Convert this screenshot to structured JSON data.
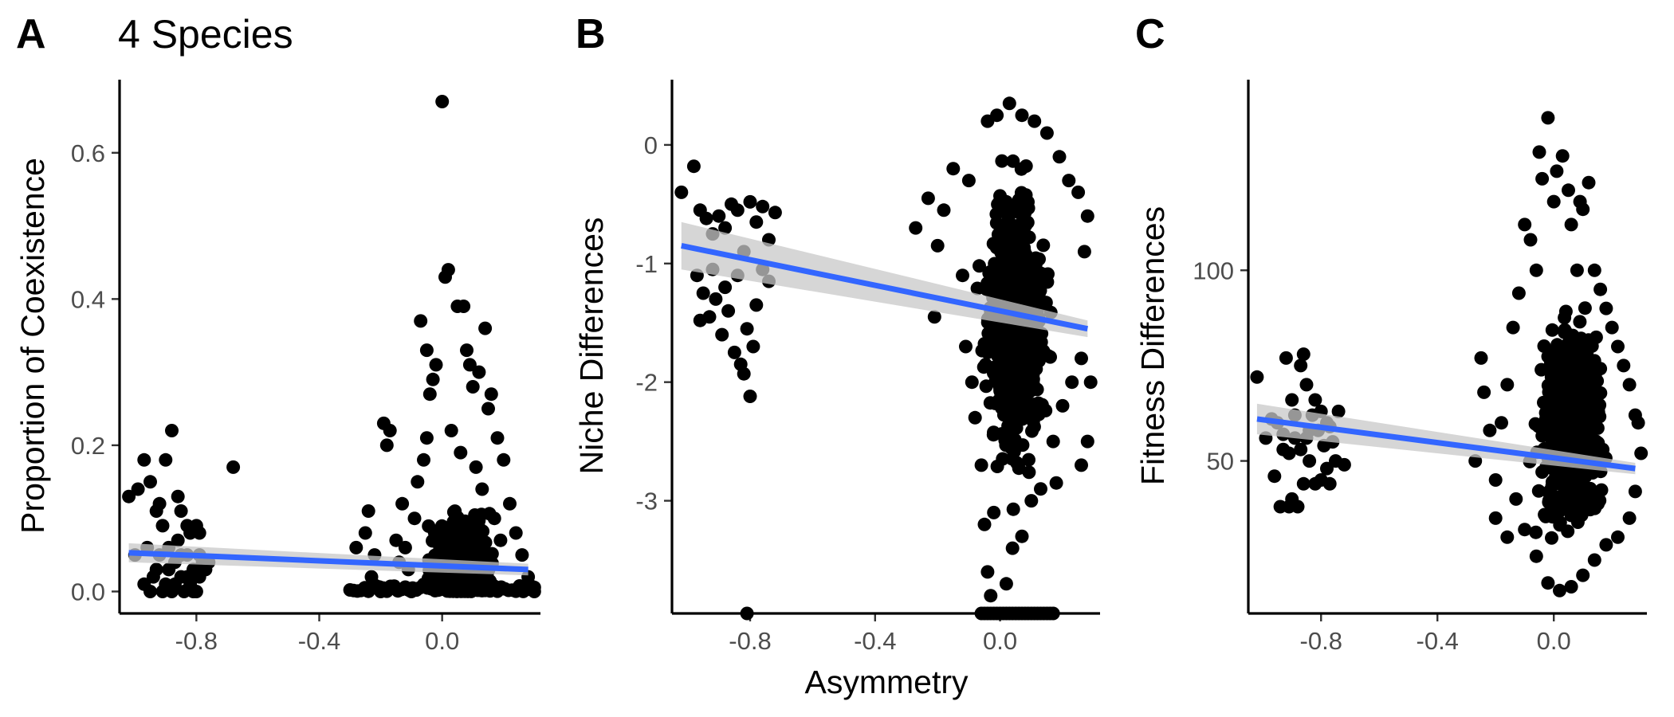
{
  "chart_data": [
    {
      "type": "scatter",
      "panel_label": "A",
      "title": "4 Species",
      "xlabel": "",
      "ylabel": "Proportion of Coexistence",
      "xlim": [
        -1.05,
        0.32
      ],
      "ylim": [
        -0.03,
        0.7
      ],
      "x_ticks": [
        -0.8,
        -0.4,
        0.0
      ],
      "x_tick_labels": [
        "-0.8",
        "-0.4",
        "0.0"
      ],
      "y_ticks": [
        0.0,
        0.2,
        0.4,
        0.6
      ],
      "y_tick_labels": [
        "0.0",
        "0.2",
        "0.4",
        "0.6"
      ],
      "grid": false,
      "points": [
        [
          -1.02,
          0.13
        ],
        [
          -0.99,
          0.14
        ],
        [
          -0.97,
          0.18
        ],
        [
          -0.95,
          0.15
        ],
        [
          -0.93,
          0.11
        ],
        [
          -0.92,
          0.12
        ],
        [
          -0.91,
          0.09
        ],
        [
          -0.9,
          0.18
        ],
        [
          -0.88,
          0.22
        ],
        [
          -0.86,
          0.13
        ],
        [
          -0.85,
          0.11
        ],
        [
          -0.83,
          0.09
        ],
        [
          -0.82,
          0.08
        ],
        [
          -0.8,
          0.09
        ],
        [
          -0.79,
          0.08
        ],
        [
          -0.97,
          0.01
        ],
        [
          -0.95,
          0.0
        ],
        [
          -0.94,
          0.02
        ],
        [
          -0.92,
          0.05
        ],
        [
          -0.9,
          0.01
        ],
        [
          -0.89,
          0.03
        ],
        [
          -0.88,
          0.0
        ],
        [
          -0.87,
          0.04
        ],
        [
          -0.86,
          0.07
        ],
        [
          -0.85,
          0.02
        ],
        [
          -0.84,
          0.0
        ],
        [
          -0.83,
          0.05
        ],
        [
          -0.82,
          0.01
        ],
        [
          -0.81,
          0.03
        ],
        [
          -0.8,
          0.0
        ],
        [
          -0.79,
          0.02
        ],
        [
          -0.78,
          0.04
        ],
        [
          -1.0,
          0.05
        ],
        [
          -0.96,
          0.06
        ],
        [
          -0.93,
          0.03
        ],
        [
          -0.91,
          0.0
        ],
        [
          -0.89,
          0.06
        ],
        [
          -0.87,
          0.01
        ],
        [
          -0.85,
          0.05
        ],
        [
          -0.83,
          0.02
        ],
        [
          -0.81,
          0.0
        ],
        [
          -0.79,
          0.05
        ],
        [
          -0.77,
          0.03
        ],
        [
          -0.76,
          0.04
        ],
        [
          -0.68,
          0.17
        ],
        [
          -0.28,
          0.06
        ],
        [
          -0.25,
          0.08
        ],
        [
          -0.24,
          0.11
        ],
        [
          -0.23,
          0.02
        ],
        [
          -0.22,
          0.05
        ],
        [
          -0.2,
          0.0
        ],
        [
          -0.19,
          0.23
        ],
        [
          -0.18,
          0.2
        ],
        [
          -0.17,
          0.22
        ],
        [
          -0.15,
          0.07
        ],
        [
          -0.13,
          0.12
        ],
        [
          -0.11,
          0.03
        ],
        [
          -0.1,
          0.0
        ],
        [
          -0.08,
          0.15
        ],
        [
          -0.07,
          0.37
        ],
        [
          -0.05,
          0.33
        ],
        [
          -0.04,
          0.27
        ],
        [
          -0.03,
          0.29
        ],
        [
          -0.02,
          0.31
        ],
        [
          0.0,
          0.67
        ],
        [
          0.01,
          0.43
        ],
        [
          0.02,
          0.44
        ],
        [
          0.05,
          0.39
        ],
        [
          0.07,
          0.39
        ],
        [
          0.08,
          0.33
        ],
        [
          0.09,
          0.31
        ],
        [
          0.1,
          0.28
        ],
        [
          0.12,
          0.3
        ],
        [
          0.14,
          0.36
        ],
        [
          0.15,
          0.25
        ],
        [
          0.16,
          0.27
        ],
        [
          0.18,
          0.21
        ],
        [
          0.2,
          0.18
        ],
        [
          0.22,
          0.12
        ],
        [
          0.24,
          0.08
        ],
        [
          0.26,
          0.05
        ],
        [
          0.28,
          0.02
        ],
        [
          0.3,
          0.0
        ],
        [
          -0.05,
          0.21
        ],
        [
          -0.06,
          0.18
        ],
        [
          0.03,
          0.22
        ],
        [
          0.06,
          0.19
        ],
        [
          0.11,
          0.17
        ],
        [
          0.13,
          0.14
        ],
        [
          -0.09,
          0.1
        ],
        [
          -0.12,
          0.06
        ],
        [
          -0.14,
          0.04
        ],
        [
          0.17,
          0.1
        ],
        [
          0.19,
          0.07
        ]
      ],
      "dense_cloud": {
        "x_range": [
          -0.1,
          0.22
        ],
        "y_range": [
          0.0,
          0.24
        ],
        "description": "thousands of overlapping points"
      },
      "fit": {
        "x": [
          -1.02,
          0.28
        ],
        "y": [
          0.053,
          0.03
        ],
        "se_low": [
          0.04,
          0.022
        ],
        "se_high": [
          0.066,
          0.038
        ]
      }
    },
    {
      "type": "scatter",
      "panel_label": "B",
      "title": "",
      "xlabel": "Asymmetry",
      "ylabel": "Niche Differences",
      "xlim": [
        -1.05,
        0.32
      ],
      "ylim": [
        -3.95,
        0.55
      ],
      "x_ticks": [
        -0.8,
        -0.4,
        0.0
      ],
      "x_tick_labels": [
        "-0.8",
        "-0.4",
        "0.0"
      ],
      "y_ticks": [
        0,
        -1,
        -2,
        -3
      ],
      "y_tick_labels": [
        "0",
        "-1",
        "-2",
        "-3"
      ],
      "grid": false,
      "points": [
        [
          -1.02,
          -0.4
        ],
        [
          -0.98,
          -0.18
        ],
        [
          -0.96,
          -0.55
        ],
        [
          -0.94,
          -0.62
        ],
        [
          -0.92,
          -0.75
        ],
        [
          -0.9,
          -0.6
        ],
        [
          -0.88,
          -0.7
        ],
        [
          -0.86,
          -0.5
        ],
        [
          -0.84,
          -0.55
        ],
        [
          -0.82,
          -0.9
        ],
        [
          -0.8,
          -0.48
        ],
        [
          -0.78,
          -0.65
        ],
        [
          -0.76,
          -0.52
        ],
        [
          -0.74,
          -0.8
        ],
        [
          -0.72,
          -0.57
        ],
        [
          -0.97,
          -1.1
        ],
        [
          -0.95,
          -1.25
        ],
        [
          -0.93,
          -1.45
        ],
        [
          -0.91,
          -1.3
        ],
        [
          -0.89,
          -1.6
        ],
        [
          -0.87,
          -1.4
        ],
        [
          -0.85,
          -1.75
        ],
        [
          -0.83,
          -1.85
        ],
        [
          -0.81,
          -1.55
        ],
        [
          -0.79,
          -1.7
        ],
        [
          -0.82,
          -1.93
        ],
        [
          -0.8,
          -2.12
        ],
        [
          -0.96,
          -1.48
        ],
        [
          -0.92,
          -1.05
        ],
        [
          -0.88,
          -1.2
        ],
        [
          -0.84,
          -1.1
        ],
        [
          -0.78,
          -1.35
        ],
        [
          -0.76,
          -1.05
        ],
        [
          -0.74,
          -1.15
        ],
        [
          -0.81,
          -3.95
        ],
        [
          -0.27,
          -0.7
        ],
        [
          -0.23,
          -0.45
        ],
        [
          -0.2,
          -0.85
        ],
        [
          -0.18,
          -0.55
        ],
        [
          -0.21,
          -1.45
        ],
        [
          -0.15,
          -0.2
        ],
        [
          -0.12,
          -1.1
        ],
        [
          -0.1,
          -0.3
        ],
        [
          -0.08,
          -2.3
        ],
        [
          -0.06,
          -2.7
        ],
        [
          -0.05,
          -3.2
        ],
        [
          -0.04,
          -3.6
        ],
        [
          -0.03,
          -3.8
        ],
        [
          -0.02,
          -3.1
        ],
        [
          0.02,
          -3.7
        ],
        [
          0.04,
          -3.4
        ],
        [
          0.07,
          -3.3
        ],
        [
          0.1,
          -3.0
        ],
        [
          0.13,
          -2.9
        ],
        [
          0.17,
          -2.5
        ],
        [
          0.2,
          -2.2
        ],
        [
          0.23,
          -2.0
        ],
        [
          0.26,
          -1.8
        ],
        [
          0.29,
          -2.0
        ],
        [
          0.28,
          -0.6
        ],
        [
          0.27,
          -0.9
        ],
        [
          0.25,
          -0.4
        ],
        [
          0.22,
          -0.3
        ],
        [
          0.19,
          -0.1
        ],
        [
          0.15,
          0.1
        ],
        [
          0.11,
          0.2
        ],
        [
          0.07,
          0.25
        ],
        [
          0.03,
          0.35
        ],
        [
          -0.01,
          0.25
        ],
        [
          -0.04,
          0.2
        ],
        [
          0.28,
          -2.5
        ],
        [
          0.26,
          -2.7
        ],
        [
          0.18,
          -2.85
        ],
        [
          -0.09,
          -2.0
        ],
        [
          -0.11,
          -1.7
        ]
      ],
      "floor_points": {
        "x_range": [
          -0.06,
          0.18
        ],
        "y": -3.95
      },
      "dense_cloud": {
        "x_range": [
          -0.12,
          0.22
        ],
        "y_range": [
          -3.3,
          0.25
        ],
        "description": "thousands of overlapping points"
      },
      "fit": {
        "x": [
          -1.02,
          0.28
        ],
        "y": [
          -0.85,
          -1.55
        ],
        "se_low": [
          -1.05,
          -1.62
        ],
        "se_high": [
          -0.65,
          -1.48
        ]
      }
    },
    {
      "type": "scatter",
      "panel_label": "C",
      "title": "",
      "xlabel": "",
      "ylabel": "Fitness Differences",
      "xlim": [
        -1.05,
        0.32
      ],
      "ylim": [
        10,
        150
      ],
      "x_ticks": [
        -0.8,
        -0.4,
        0.0
      ],
      "x_tick_labels": [
        "-0.8",
        "-0.4",
        "0.0"
      ],
      "y_ticks": [
        50,
        100
      ],
      "y_tick_labels": [
        "50",
        "100"
      ],
      "grid": false,
      "points": [
        [
          -1.02,
          72
        ],
        [
          -0.99,
          56
        ],
        [
          -0.97,
          61
        ],
        [
          -0.95,
          60
        ],
        [
          -0.93,
          53
        ],
        [
          -0.92,
          77
        ],
        [
          -0.9,
          66
        ],
        [
          -0.89,
          62
        ],
        [
          -0.87,
          75
        ],
        [
          -0.86,
          78
        ],
        [
          -0.85,
          70
        ],
        [
          -0.84,
          58
        ],
        [
          -0.82,
          66
        ],
        [
          -0.8,
          63
        ],
        [
          -0.78,
          60
        ],
        [
          -0.76,
          55
        ],
        [
          -0.74,
          63
        ],
        [
          -0.72,
          49
        ],
        [
          -0.96,
          46
        ],
        [
          -0.94,
          38
        ],
        [
          -0.91,
          38
        ],
        [
          -0.9,
          40
        ],
        [
          -0.88,
          38
        ],
        [
          -0.86,
          44
        ],
        [
          -0.84,
          50
        ],
        [
          -0.82,
          44
        ],
        [
          -0.8,
          45
        ],
        [
          -0.78,
          48
        ],
        [
          -0.77,
          44
        ],
        [
          -0.93,
          57
        ],
        [
          -0.91,
          52
        ],
        [
          -0.89,
          56
        ],
        [
          -0.87,
          53
        ],
        [
          -0.85,
          56
        ],
        [
          -0.83,
          62
        ],
        [
          -0.81,
          58
        ],
        [
          -0.79,
          54
        ],
        [
          -0.77,
          59
        ],
        [
          -0.75,
          50
        ],
        [
          -0.27,
          50
        ],
        [
          -0.25,
          77
        ],
        [
          -0.24,
          68
        ],
        [
          -0.22,
          58
        ],
        [
          -0.2,
          45
        ],
        [
          -0.18,
          60
        ],
        [
          -0.16,
          70
        ],
        [
          -0.14,
          85
        ],
        [
          -0.12,
          94
        ],
        [
          -0.1,
          112
        ],
        [
          -0.08,
          108
        ],
        [
          -0.06,
          100
        ],
        [
          -0.05,
          131
        ],
        [
          -0.04,
          124
        ],
        [
          -0.02,
          140
        ],
        [
          0.0,
          118
        ],
        [
          0.01,
          126
        ],
        [
          0.03,
          130
        ],
        [
          0.05,
          121
        ],
        [
          0.06,
          112
        ],
        [
          0.08,
          100
        ],
        [
          0.09,
          118
        ],
        [
          0.1,
          116
        ],
        [
          0.12,
          123
        ],
        [
          0.14,
          100
        ],
        [
          0.16,
          95
        ],
        [
          0.18,
          90
        ],
        [
          0.2,
          85
        ],
        [
          0.22,
          80
        ],
        [
          0.24,
          75
        ],
        [
          0.26,
          70
        ],
        [
          0.28,
          62
        ],
        [
          0.29,
          60
        ],
        [
          0.3,
          52
        ],
        [
          0.28,
          42
        ],
        [
          0.26,
          35
        ],
        [
          0.22,
          30
        ],
        [
          -0.2,
          35
        ],
        [
          -0.16,
          30
        ],
        [
          -0.13,
          40
        ],
        [
          -0.1,
          32
        ],
        [
          -0.06,
          25
        ],
        [
          -0.02,
          18
        ],
        [
          0.02,
          16
        ],
        [
          0.06,
          17
        ],
        [
          0.1,
          20
        ],
        [
          0.14,
          24
        ],
        [
          0.18,
          28
        ]
      ],
      "dense_cloud": {
        "x_range": [
          -0.12,
          0.24
        ],
        "y_range": [
          17,
          100
        ],
        "description": "thousands of overlapping points"
      },
      "fit": {
        "x": [
          -1.02,
          0.28
        ],
        "y": [
          61,
          48
        ],
        "se_low": [
          57,
          46.5
        ],
        "se_high": [
          65,
          49.5
        ]
      }
    }
  ]
}
